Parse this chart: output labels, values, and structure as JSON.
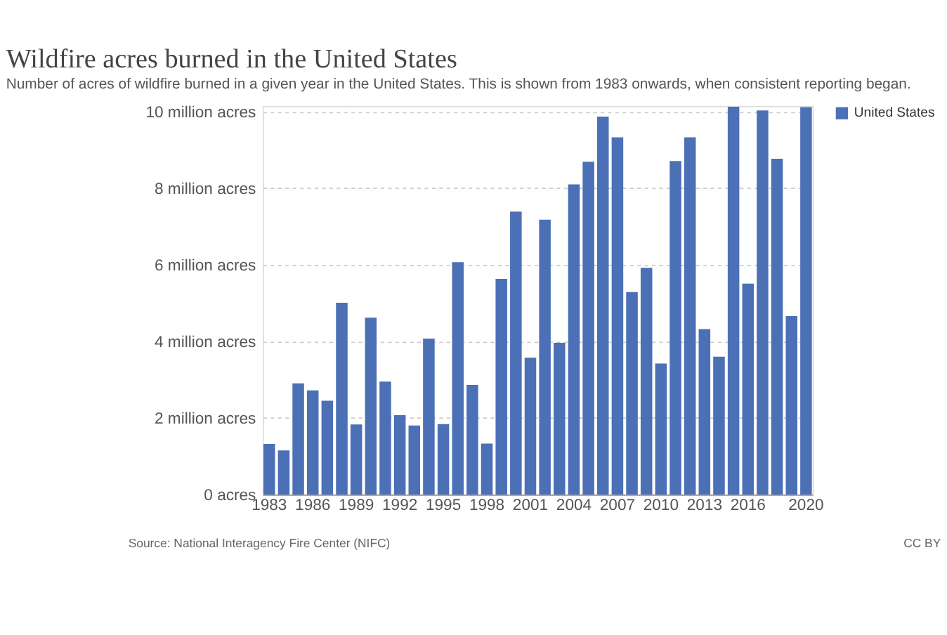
{
  "chart_data": {
    "type": "bar",
    "title": "Wildfire acres burned in the United States",
    "subtitle": "Number of acres of wildfire burned in a given year in the United States. This is shown from 1983 onwards, when consistent reporting began.",
    "categories": [
      "1983",
      null,
      null,
      "1986",
      null,
      null,
      "1989",
      null,
      null,
      "1992",
      null,
      null,
      "1995",
      null,
      null,
      "1998",
      null,
      null,
      "2001",
      null,
      null,
      "2004",
      null,
      null,
      "2007",
      null,
      null,
      "2010",
      null,
      null,
      "2013",
      null,
      null,
      "2016",
      null,
      null,
      null,
      "2020"
    ],
    "series": [
      {
        "name": "United States",
        "color": "#4c70b5",
        "values": [
          1.32,
          1.15,
          2.9,
          2.72,
          2.45,
          5.01,
          1.83,
          4.62,
          2.95,
          2.07,
          1.8,
          4.07,
          1.84,
          6.07,
          2.86,
          1.33,
          5.63,
          7.39,
          3.57,
          7.18,
          3.96,
          8.1,
          8.69,
          9.87,
          9.33,
          5.29,
          5.92,
          3.42,
          8.71,
          9.33,
          4.32,
          3.6,
          10.13,
          5.51,
          10.03,
          8.77,
          4.66,
          10.12
        ]
      }
    ],
    "ylim": [
      0,
      10.15
    ],
    "yticks": [
      {
        "value": 0,
        "label": "0 acres"
      },
      {
        "value": 2,
        "label": "2 million acres"
      },
      {
        "value": 4,
        "label": "4 million acres"
      },
      {
        "value": 6,
        "label": "6 million acres"
      },
      {
        "value": 8,
        "label": "8 million acres"
      },
      {
        "value": 10,
        "label": "10 million acres"
      }
    ],
    "grid": "y",
    "legend": "top right",
    "annotations": [
      "Source: National Interagency Fire Center (NIFC)",
      "CC BY"
    ]
  }
}
